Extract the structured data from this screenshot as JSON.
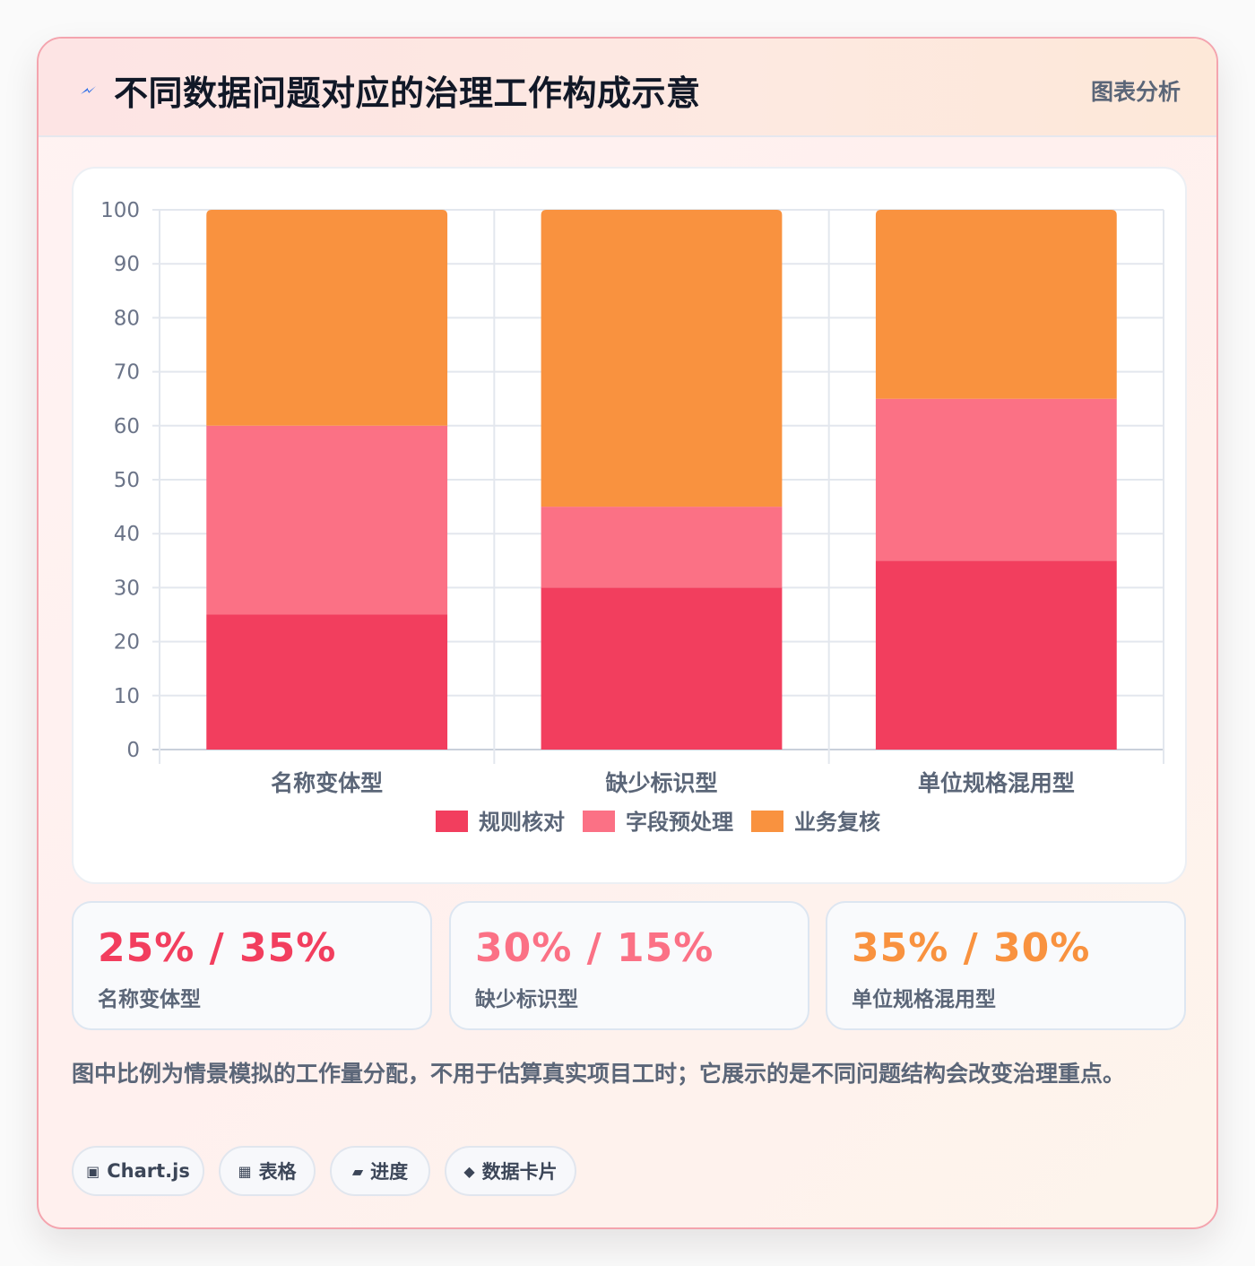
{
  "header": {
    "title": "不同数据问题对应的治理工作构成示意",
    "tag": "图表分析"
  },
  "chart_data": {
    "type": "bar",
    "stacked": true,
    "categories": [
      "名称变体型",
      "缺少标识型",
      "单位规格混用型"
    ],
    "series": [
      {
        "name": "规则核对",
        "color": "#f23e5e",
        "values": [
          25,
          30,
          35
        ]
      },
      {
        "name": "字段预处理",
        "color": "#fb7185",
        "values": [
          35,
          15,
          30
        ]
      },
      {
        "name": "业务复核",
        "color": "#f9923f",
        "values": [
          40,
          55,
          35
        ]
      }
    ],
    "ylim": [
      0,
      100
    ],
    "yticks": [
      "0",
      "10",
      "20",
      "30",
      "40",
      "50",
      "60",
      "70",
      "80",
      "90",
      "100"
    ],
    "grid": true,
    "legend": "bottom"
  },
  "stats": [
    {
      "value": "25% / 35%",
      "label": "名称变体型",
      "color": "#f23e5e"
    },
    {
      "value": "30% / 15%",
      "label": "缺少标识型",
      "color": "#fb7185"
    },
    {
      "value": "35% / 30%",
      "label": "单位规格混用型",
      "color": "#f9923f"
    }
  ],
  "note": "图中比例为情景模拟的工作量分配，不用于估算真实项目工时；它展示的是不同问题结构会改变治理重点。",
  "pills": [
    {
      "icon": "chart-icon",
      "glyph": "▣",
      "label": "Chart.js"
    },
    {
      "icon": "table-icon",
      "glyph": "▦",
      "label": "表格"
    },
    {
      "icon": "progress-icon",
      "glyph": "▰",
      "label": "进度"
    },
    {
      "icon": "card-icon",
      "glyph": "◆",
      "label": "数据卡片"
    }
  ]
}
